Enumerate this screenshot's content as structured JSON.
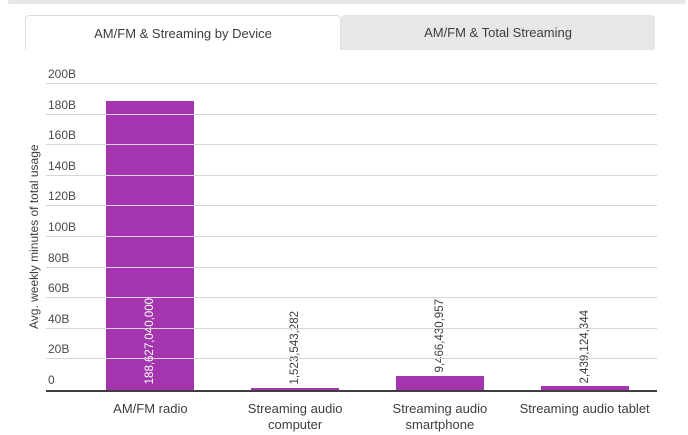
{
  "tabs": [
    {
      "label": "AM/FM & Streaming by Device",
      "active": true
    },
    {
      "label": "AM/FM & Total Streaming",
      "active": false
    }
  ],
  "chart_data": {
    "type": "bar",
    "title": "AM/FM & Streaming by Device",
    "ylabel": "Avg. weekly minutes of total usage",
    "xlabel": "",
    "categories": [
      "AM/FM radio",
      "Streaming audio computer",
      "Streaming audio smartphone",
      "Streaming audio tablet"
    ],
    "category_display": [
      "AM/FM radio",
      "Streaming audio\ncomputer",
      "Streaming audio\nsmartphone",
      "Streaming audio tablet"
    ],
    "values": [
      188627040000,
      1523543282,
      9466430957,
      2439124344
    ],
    "value_labels": [
      "188,627,040,000",
      "1,523,543,282",
      "9,466,430,957",
      "2,439,124,344"
    ],
    "value_label_inside": [
      true,
      false,
      false,
      false
    ],
    "ylim": [
      0,
      200000000000
    ],
    "yticks": [
      {
        "value": 0,
        "label": "0"
      },
      {
        "value": 20000000000,
        "label": "20B"
      },
      {
        "value": 40000000000,
        "label": "40B"
      },
      {
        "value": 60000000000,
        "label": "60B"
      },
      {
        "value": 80000000000,
        "label": "80B"
      },
      {
        "value": 100000000000,
        "label": "100B"
      },
      {
        "value": 120000000000,
        "label": "120B"
      },
      {
        "value": 140000000000,
        "label": "140B"
      },
      {
        "value": 160000000000,
        "label": "160B"
      },
      {
        "value": 180000000000,
        "label": "180B"
      },
      {
        "value": 200000000000,
        "label": "200B"
      }
    ],
    "grid": true,
    "legend": false,
    "bar_color": "#A435AE"
  },
  "colors": {
    "bar": "#A435AE",
    "gridline": "#D5D5D5",
    "axis_line": "#3F3F3F",
    "text": "#3D3D3D",
    "tab_inactive_bg": "#E7E7E7",
    "tab_border": "#DDDDDD",
    "value_label_inside_text": "#FFFFFF"
  }
}
